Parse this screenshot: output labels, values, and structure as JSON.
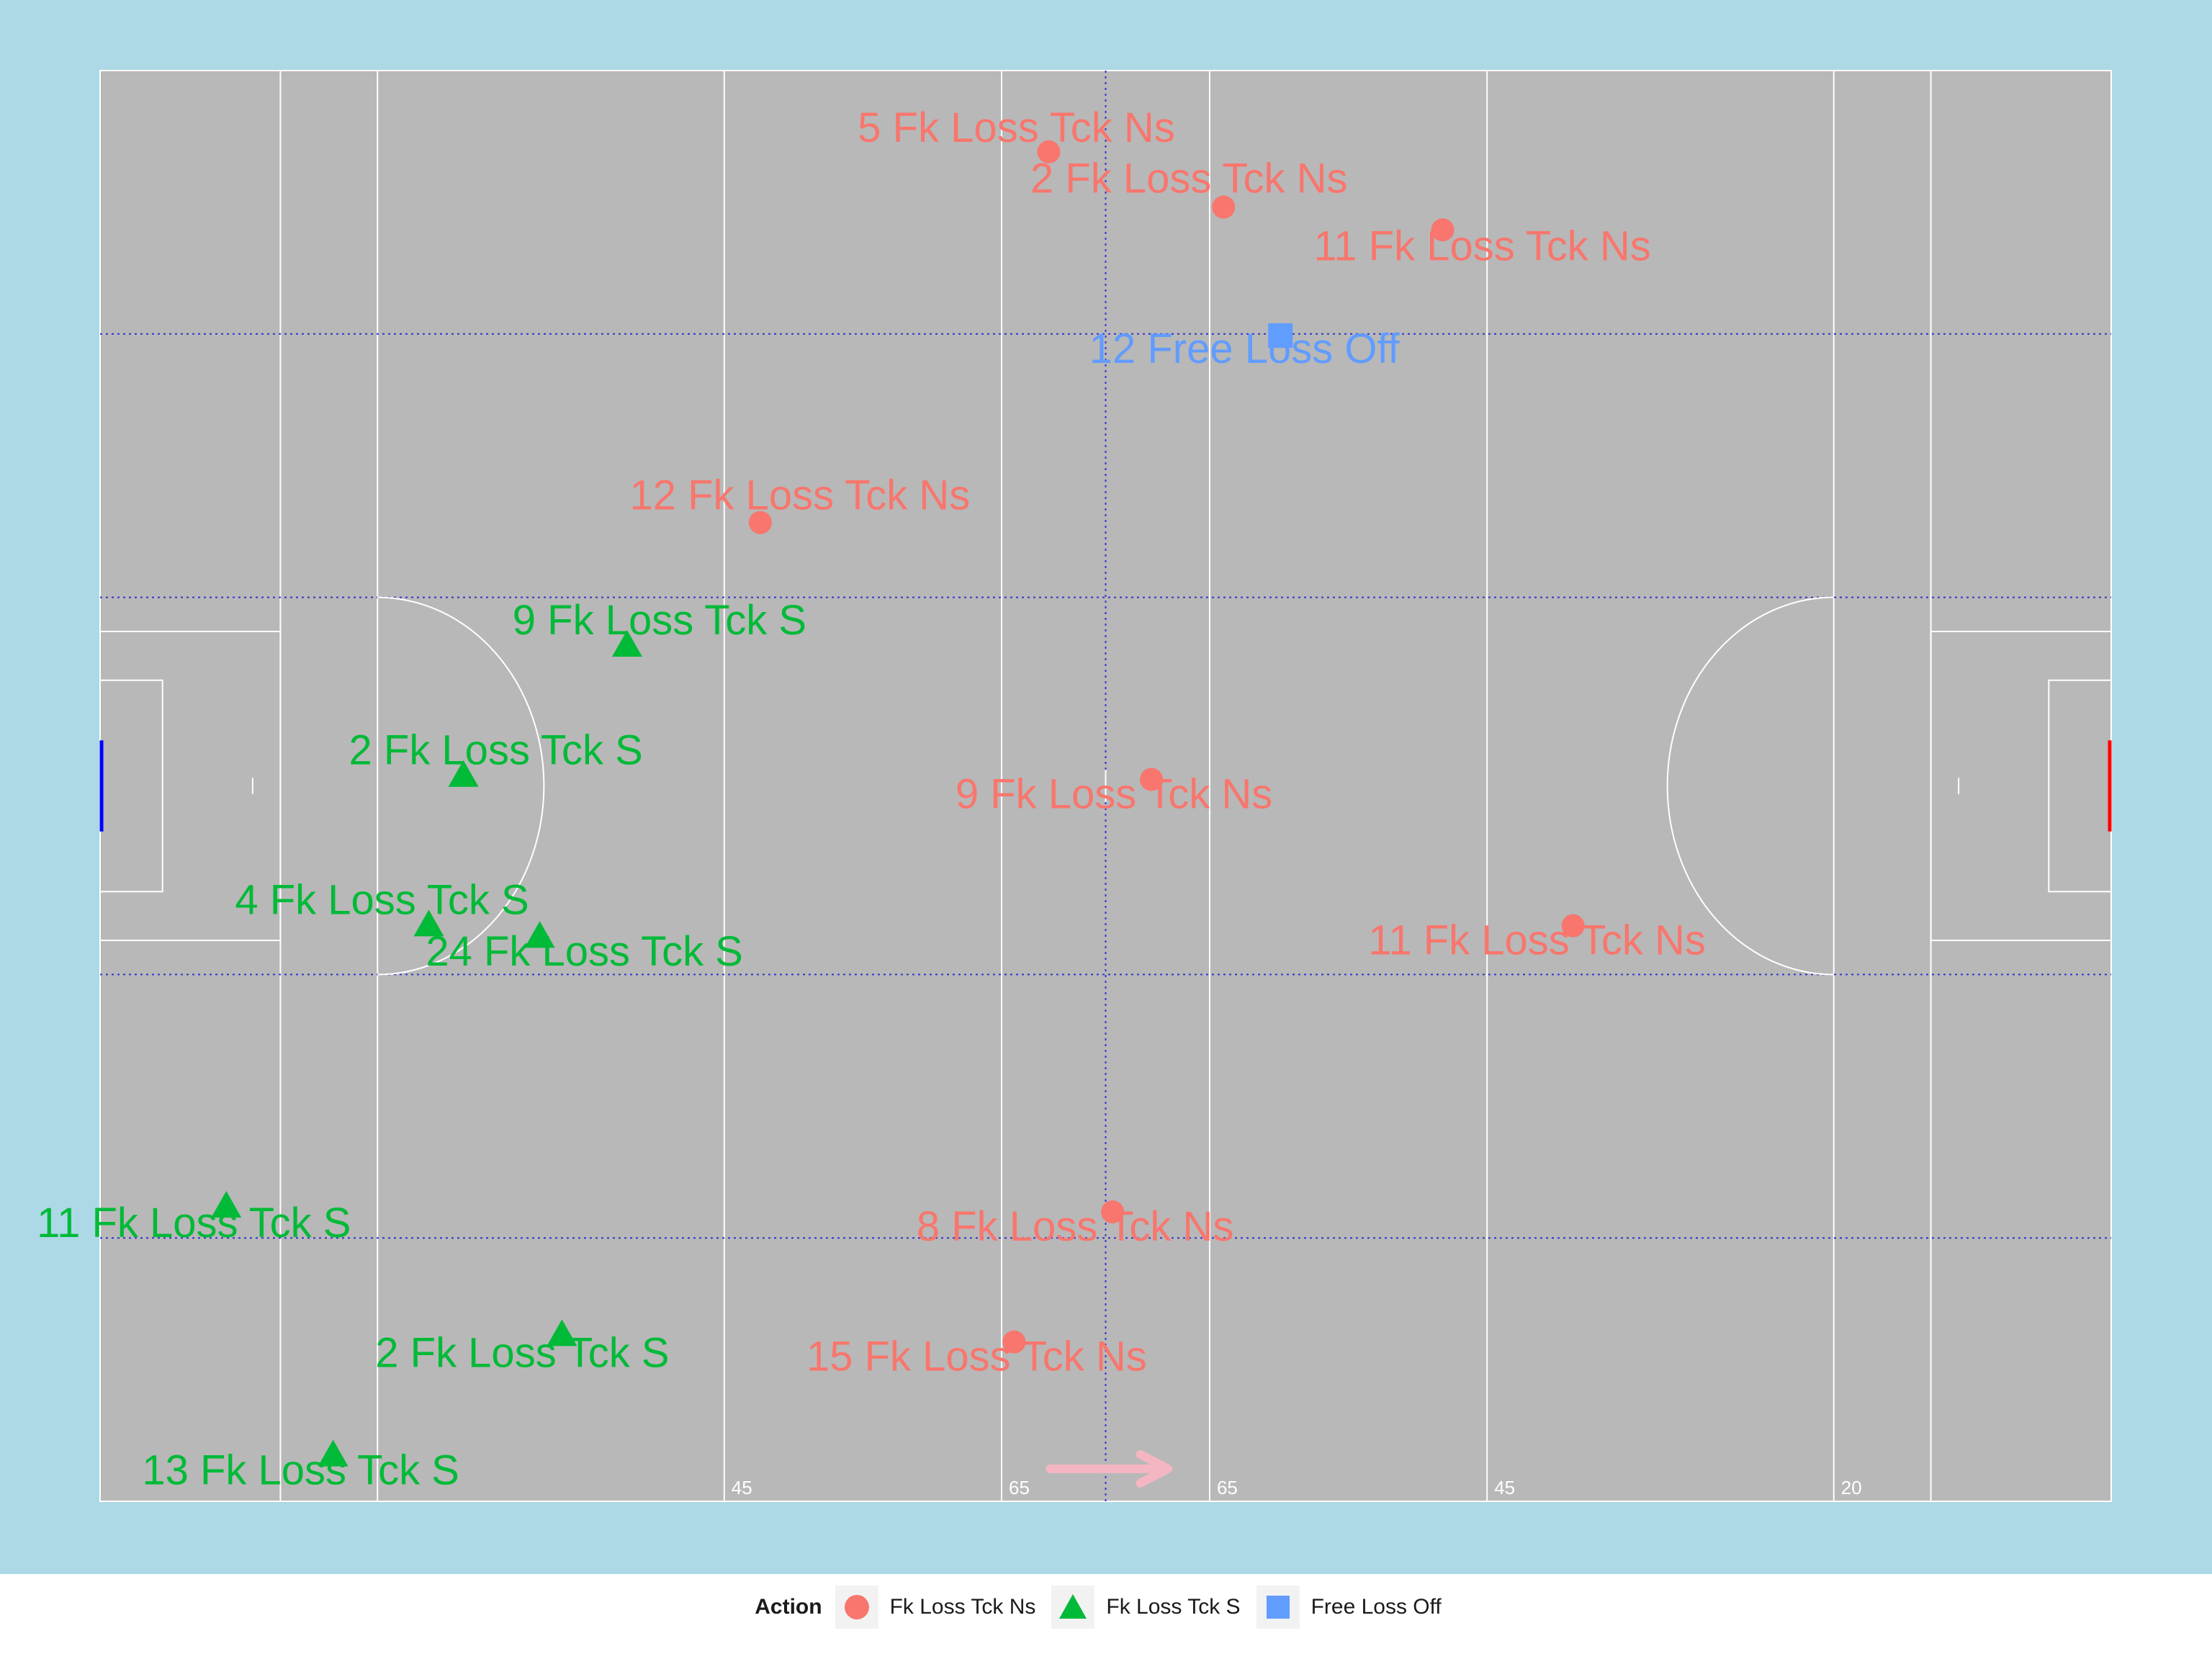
{
  "colors": {
    "outer_bg": "#ADD8E6",
    "pitch": "#B8B8B8",
    "line": "#FFFFFF",
    "dotted": "#3333CC",
    "series_ns": "#F8766D",
    "series_s": "#00BA38",
    "series_off": "#619CFF",
    "left_goal": "#0000FF",
    "right_goal": "#FF0000",
    "arrow": "#F4B6C2"
  },
  "chart_data": {
    "type": "scatter",
    "xlim": [
      0,
      145
    ],
    "ylim": [
      0,
      88
    ],
    "grid": false,
    "legend_position": "bottom",
    "legend_title": "Action",
    "legend": [
      {
        "label": "Fk Loss Tck Ns",
        "shape": "circle",
        "color": "#F8766D"
      },
      {
        "label": "Fk Loss Tck S",
        "shape": "triangle",
        "color": "#00BA38"
      },
      {
        "label": "Free Loss Off",
        "shape": "square",
        "color": "#619CFF"
      }
    ],
    "pitch_markings": [
      {
        "x": 20,
        "label": ""
      },
      {
        "x": 45,
        "label": "45"
      },
      {
        "x": 65,
        "label": "65"
      },
      {
        "x": 80,
        "label": "65"
      },
      {
        "x": 100,
        "label": "45"
      },
      {
        "x": 125,
        "label": "20"
      }
    ],
    "series": [
      {
        "name": "Fk Loss Tck Ns",
        "shape": "circle",
        "points": [
          {
            "x": 68.4,
            "y": 83.0,
            "label": "5 Fk Loss Tck Ns"
          },
          {
            "x": 81.0,
            "y": 79.6,
            "label": "2 Fk Loss Tck Ns"
          },
          {
            "x": 96.8,
            "y": 78.2,
            "label": "11 Fk Loss Tck Ns"
          },
          {
            "x": 47.6,
            "y": 60.2,
            "label": "12 Fk Loss Tck Ns"
          },
          {
            "x": 75.8,
            "y": 44.4,
            "label": "9 Fk Loss Tck Ns"
          },
          {
            "x": 106.2,
            "y": 35.4,
            "label": "11 Fk Loss Tck Ns"
          },
          {
            "x": 73.0,
            "y": 17.8,
            "label": "8 Fk Loss Tck Ns"
          },
          {
            "x": 65.9,
            "y": 9.8,
            "label": "15 Fk Loss Tck Ns"
          }
        ]
      },
      {
        "name": "Fk Loss Tck S",
        "shape": "triangle",
        "points": [
          {
            "x": 38.0,
            "y": 52.7,
            "label": "9 Fk Loss Tck S"
          },
          {
            "x": 26.2,
            "y": 44.7,
            "label": "2 Fk Loss Tck S"
          },
          {
            "x": 23.7,
            "y": 35.5,
            "label": "4 Fk Loss Tck S"
          },
          {
            "x": 31.7,
            "y": 34.8,
            "label": "24 Fk Loss Tck S"
          },
          {
            "x": 9.1,
            "y": 18.2,
            "label": "11 Fk Loss Tck S"
          },
          {
            "x": 33.3,
            "y": 10.3,
            "label": "2 Fk Loss Tck S"
          },
          {
            "x": 16.8,
            "y": 2.9,
            "label": "13 Fk Loss Tck S"
          }
        ]
      },
      {
        "name": "Free Loss Off",
        "shape": "square",
        "points": [
          {
            "x": 85.1,
            "y": 71.7,
            "label": "12 Free Loss Off"
          }
        ]
      }
    ]
  }
}
